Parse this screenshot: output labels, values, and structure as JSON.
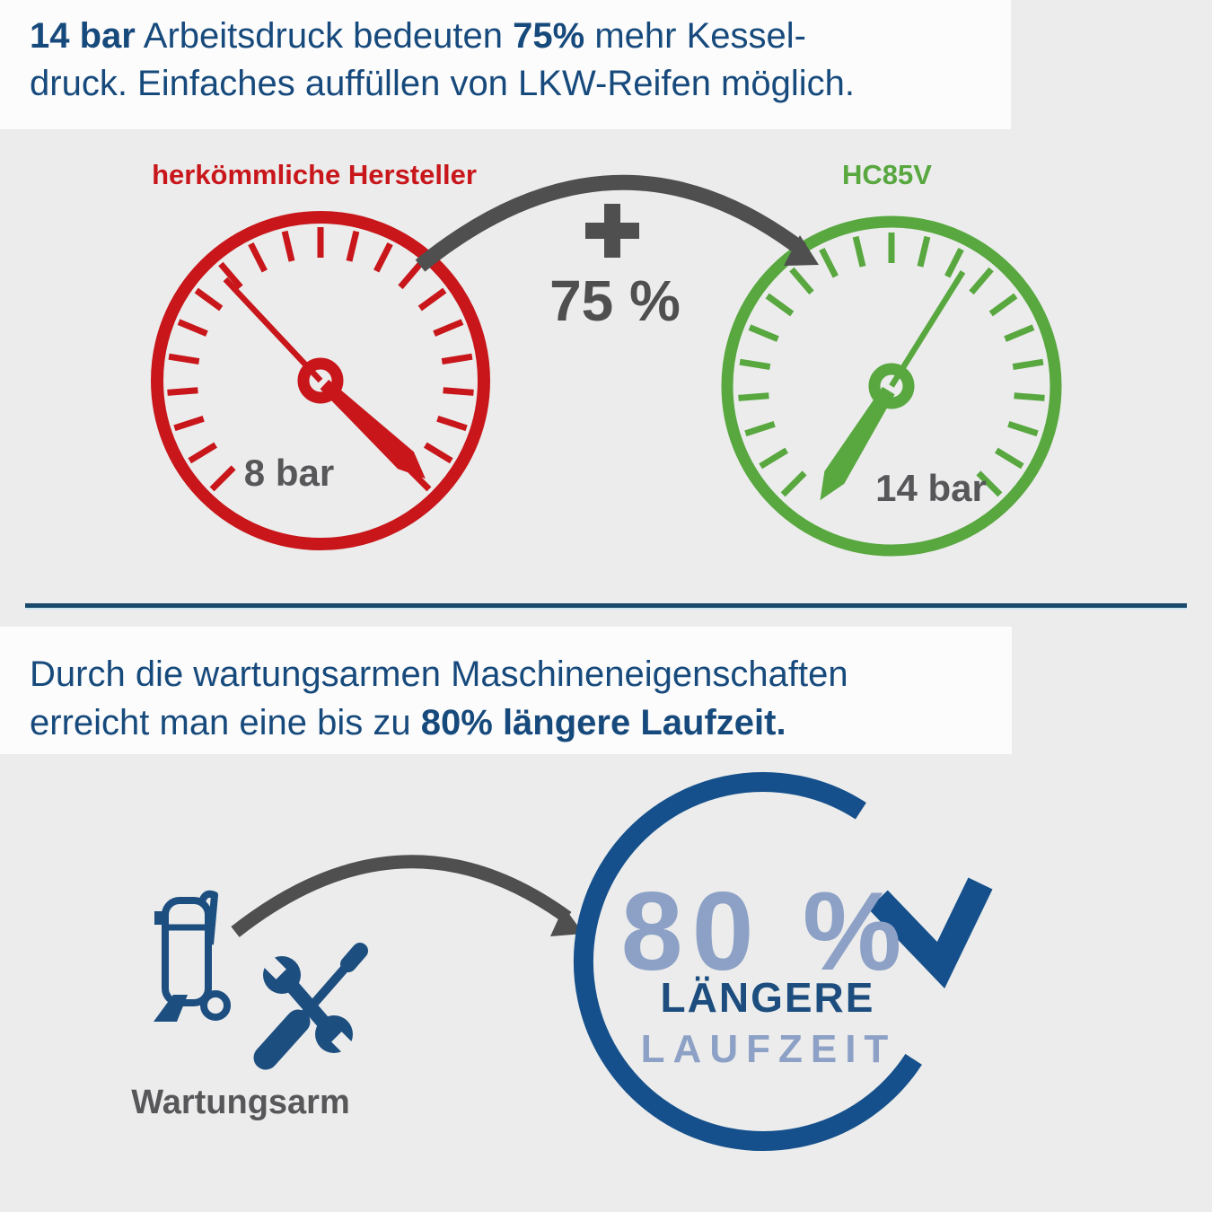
{
  "header": {
    "bold1": "14 bar",
    "text1": " Arbeitsdruck bedeuten ",
    "bold2": "75%",
    "text2": " mehr Kessel-",
    "line2": "druck. Einfaches auffüllen von LKW-Reifen möglich."
  },
  "comparison": {
    "left_label": "herkömmliche Hersteller",
    "left_value": "8 bar",
    "right_label": "HC85V",
    "right_value": "14 bar",
    "plus_value": "75 %"
  },
  "section2": {
    "line1": "Durch die wartungsarmen Maschineneigenschaften",
    "normal2": "erreicht man eine bis zu ",
    "bold2": "80% längere Laufzeit."
  },
  "maintenance": {
    "label": "Wartungsarm",
    "percent": "80 %",
    "benefit_line1": "LÄNGERE",
    "benefit_line2": "LAUFZEIT"
  },
  "icons": {
    "plus": "plus-icon",
    "curved_arrow_top": "curved-arrow-icon",
    "curved_arrow_bottom": "curved-arrow-icon",
    "compressor": "compressor-icon",
    "tools": "wrench-screwdriver-icon",
    "rotation": "rotation-arrow-icon"
  },
  "colors": {
    "background": "#ebeceb",
    "panel": "#fcfcfc",
    "heading_navy": "#174a7c",
    "red": "#c8161b",
    "green": "#58a73f",
    "arrow_gray": "#4f4f4f",
    "value_gray": "#57575a",
    "icon_blue": "#1d4e80",
    "circle_blue": "#15508c",
    "light_blue": "#8da1c6",
    "divider_navy": "#194a6c",
    "divider_light": "#cfe7f3"
  }
}
